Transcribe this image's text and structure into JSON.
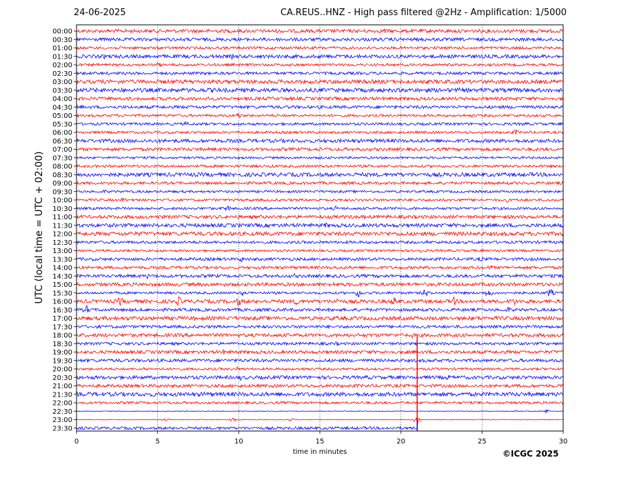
{
  "header": {
    "date": "24-06-2025",
    "title": "CA.REUS..HNZ - High pass filtered @2Hz - Amplification: 1/5000"
  },
  "footer": {
    "copyright": "©ICGC 2025"
  },
  "chart_data": {
    "type": "line",
    "title": "CA.REUS..HNZ - High pass filtered @2Hz - Amplification: 1/5000",
    "xlabel": "time in minutes",
    "ylabel": "UTC (local time = UTC + 02:00)",
    "xlim": [
      0,
      30
    ],
    "x_ticks": [
      "0",
      "5",
      "10",
      "15",
      "20",
      "25",
      "30"
    ],
    "vertical_grid": "dotted at 5-minute intervals",
    "row_colors": [
      "#ff0000",
      "#0000ff"
    ],
    "rows": [
      "00:00",
      "00:30",
      "01:00",
      "01:30",
      "02:00",
      "02:30",
      "03:00",
      "03:30",
      "04:00",
      "04:30",
      "05:00",
      "05:30",
      "06:00",
      "06:30",
      "07:00",
      "07:30",
      "08:00",
      "08:30",
      "09:00",
      "09:30",
      "10:00",
      "10:30",
      "11:00",
      "11:30",
      "12:00",
      "12:30",
      "13:00",
      "13:30",
      "14:00",
      "14:30",
      "15:00",
      "15:30",
      "16:00",
      "16:30",
      "17:00",
      "17:30",
      "18:00",
      "18:30",
      "19:00",
      "19:30",
      "20:00",
      "20:30",
      "21:00",
      "21:30",
      "22:00",
      "22:30",
      "23:00",
      "23:30"
    ],
    "events": [
      {
        "row": "15:30",
        "minutes": [
          17.4,
          21.5,
          25.4,
          29.2
        ]
      },
      {
        "row": "16:00",
        "minutes": [
          2.7,
          6.3,
          10.0,
          13.6,
          16.0,
          19.6,
          23.3,
          26.9
        ]
      },
      {
        "row": "16:30",
        "minutes": [
          0.6
        ]
      },
      {
        "row": "23:00",
        "minutes": [
          21.0
        ]
      }
    ],
    "data_end": {
      "row": "23:30",
      "minute": 21.0
    }
  }
}
